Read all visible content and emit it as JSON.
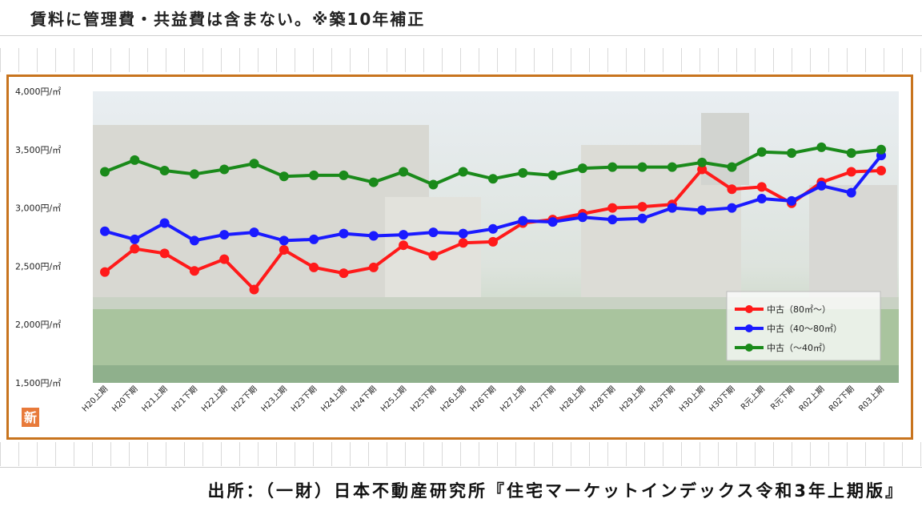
{
  "header_note": "賃料に管理費・共益費は含まない。※築10年補正",
  "source": "出所：（一財）日本不動産研究所『住宅マーケットインデックス令和3年上期版』",
  "new_badge": "新",
  "colors": {
    "frame": "#c8741e",
    "large": "#ff1a1a",
    "mid": "#1a1aff",
    "small": "#1a8a1a"
  },
  "chart_data": {
    "type": "line",
    "title": "",
    "ylim": [
      1500,
      4000
    ],
    "y_ticks": [
      "4,000円/㎡",
      "3,500円/㎡",
      "3,000円/㎡",
      "2,500円/㎡",
      "2,000円/㎡",
      "1,500円/㎡"
    ],
    "y_tick_values": [
      4000,
      3500,
      3000,
      2500,
      2000,
      1500
    ],
    "categories": [
      "H20上期",
      "H20下期",
      "H21上期",
      "H21下期",
      "H22上期",
      "H22下期",
      "H23上期",
      "H23下期",
      "H24上期",
      "H24下期",
      "H25上期",
      "H25下期",
      "H26上期",
      "H26下期",
      "H27上期",
      "H27下期",
      "H28上期",
      "H28下期",
      "H29上期",
      "H29下期",
      "H30上期",
      "H30下期",
      "R元上期",
      "R元下期",
      "R02上期",
      "R02下期",
      "R03上期"
    ],
    "legend_position": "bottom-right",
    "series": [
      {
        "name": "中古（80㎡～）",
        "color": "#ff1a1a",
        "values": [
          2450,
          2650,
          2610,
          2460,
          2560,
          2300,
          2640,
          2490,
          2440,
          2490,
          2680,
          2590,
          2700,
          2710,
          2870,
          2900,
          2950,
          3000,
          3010,
          3030,
          3330,
          3160,
          3180,
          3040,
          3220,
          3310,
          3320
        ]
      },
      {
        "name": "中古（40～80㎡）",
        "color": "#1a1aff",
        "values": [
          2800,
          2730,
          2870,
          2720,
          2770,
          2790,
          2720,
          2730,
          2780,
          2760,
          2770,
          2790,
          2780,
          2820,
          2890,
          2880,
          2920,
          2900,
          2910,
          3000,
          2980,
          3000,
          3080,
          3060,
          3190,
          3130,
          3450
        ]
      },
      {
        "name": "中古（～40㎡）",
        "color": "#1a8a1a",
        "values": [
          3310,
          3410,
          3320,
          3290,
          3330,
          3380,
          3270,
          3280,
          3280,
          3220,
          3310,
          3200,
          3310,
          3250,
          3300,
          3280,
          3340,
          3350,
          3350,
          3350,
          3390,
          3350,
          3480,
          3470,
          3520,
          3470,
          3500
        ]
      }
    ]
  }
}
